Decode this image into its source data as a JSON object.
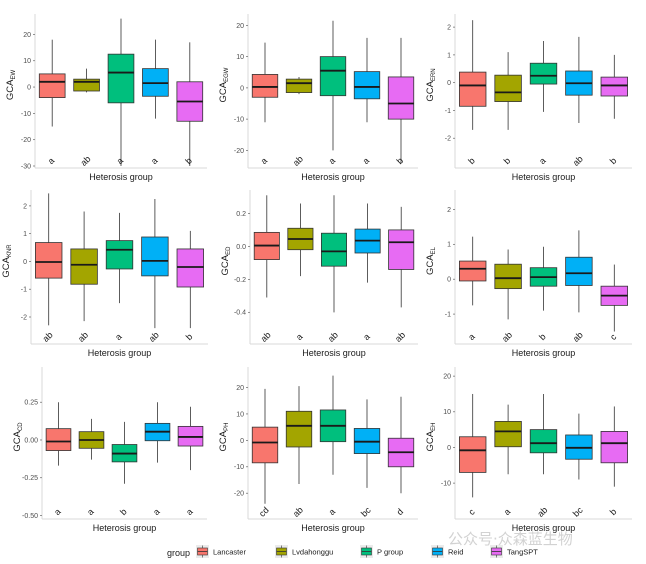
{
  "chart_data": {
    "type": "boxplot",
    "groups": [
      "Lancaster",
      "Lvdahonggu",
      "P group",
      "Reid",
      "TangSPT"
    ],
    "colors": [
      "#F8766D",
      "#A3A500",
      "#00BF7D",
      "#00B0F6",
      "#E76BF3"
    ],
    "legend": {
      "title": "group",
      "position": "bottom"
    },
    "panels": [
      {
        "id": "EW",
        "ylabel": "GCA",
        "ysub": "EW",
        "xlabel": "Heterosis group",
        "ylim": [
          -30,
          27
        ],
        "yticks": [
          -30,
          -20,
          -10,
          0,
          10,
          20
        ],
        "boxes": [
          {
            "min": -15,
            "q1": -4,
            "median": 2,
            "q3": 5,
            "max": 18
          },
          {
            "min": -2,
            "q1": -1.5,
            "median": 2,
            "q3": 3,
            "max": 7
          },
          {
            "min": -30,
            "q1": -6,
            "median": 5.5,
            "q3": 12.5,
            "max": 26
          },
          {
            "min": -12,
            "q1": -3.5,
            "median": 1.5,
            "q3": 7,
            "max": 18
          },
          {
            "min": -30,
            "q1": -13,
            "median": -5.5,
            "q3": 2,
            "max": 17
          }
        ],
        "letters": [
          "a",
          "ab",
          "a",
          "a",
          "b"
        ]
      },
      {
        "id": "EGW",
        "ylabel": "GCA",
        "ysub": "EGW",
        "xlabel": "Heterosis group",
        "ylim": [
          -25,
          23
        ],
        "yticks": [
          -20,
          -10,
          0,
          10,
          20
        ],
        "boxes": [
          {
            "min": -11,
            "q1": -3,
            "median": 0.3,
            "q3": 4.3,
            "max": 14.5
          },
          {
            "min": -2,
            "q1": -1.5,
            "median": 1.5,
            "q3": 2.8,
            "max": 3.5
          },
          {
            "min": -20,
            "q1": -2.5,
            "median": 5.5,
            "q3": 10,
            "max": 21.5
          },
          {
            "min": -11,
            "q1": -3.5,
            "median": 0.3,
            "q3": 5.2,
            "max": 16
          },
          {
            "min": -24,
            "q1": -10,
            "median": -5,
            "q3": 3.5,
            "max": 16
          }
        ],
        "letters": [
          "a",
          "ab",
          "a",
          "a",
          "b"
        ]
      },
      {
        "id": "ERN",
        "ylabel": "GCA",
        "ysub": "ERN",
        "xlabel": "Heterosis group",
        "ylim": [
          -3,
          2.4
        ],
        "yticks": [
          -2,
          -1,
          0,
          1,
          2
        ],
        "boxes": [
          {
            "min": -1.7,
            "q1": -0.85,
            "median": -0.1,
            "q3": 0.38,
            "max": 2.25
          },
          {
            "min": -1.7,
            "q1": -0.68,
            "median": -0.35,
            "q3": 0.27,
            "max": 1.1
          },
          {
            "min": -1.05,
            "q1": -0.05,
            "median": 0.25,
            "q3": 0.7,
            "max": 1.5
          },
          {
            "min": -1.45,
            "q1": -0.45,
            "median": -0.02,
            "q3": 0.42,
            "max": 1.65
          },
          {
            "min": -1.3,
            "q1": -0.48,
            "median": -0.1,
            "q3": 0.2,
            "max": 1.0
          }
        ],
        "letters": [
          "b",
          "b",
          "a",
          "ab",
          "b"
        ]
      },
      {
        "id": "KNR",
        "ylabel": "GCA",
        "ysub": "KNR",
        "xlabel": "Heterosis group",
        "ylim": [
          -2.9,
          2.5
        ],
        "yticks": [
          -2,
          -1,
          0,
          1,
          2
        ],
        "boxes": [
          {
            "min": -2.3,
            "q1": -0.6,
            "median": -0.02,
            "q3": 0.68,
            "max": 2.45
          },
          {
            "min": -2.15,
            "q1": -0.82,
            "median": -0.12,
            "q3": 0.45,
            "max": 1.8
          },
          {
            "min": -1.5,
            "q1": -0.27,
            "median": 0.42,
            "q3": 0.75,
            "max": 1.75
          },
          {
            "min": -2.4,
            "q1": -0.52,
            "median": 0.02,
            "q3": 0.88,
            "max": 2.25
          },
          {
            "min": -2.4,
            "q1": -0.92,
            "median": -0.2,
            "q3": 0.45,
            "max": 1.1
          }
        ],
        "letters": [
          "ab",
          "ab",
          "a",
          "ab",
          "b"
        ]
      },
      {
        "id": "ED",
        "ylabel": "GCA",
        "ysub": "ED",
        "xlabel": "Heterosis group",
        "ylim": [
          -0.58,
          0.33
        ],
        "yticks": [
          -0.4,
          -0.2,
          0.0,
          0.2
        ],
        "boxes": [
          {
            "min": -0.31,
            "q1": -0.08,
            "median": 0.005,
            "q3": 0.085,
            "max": 0.31
          },
          {
            "min": -0.18,
            "q1": -0.02,
            "median": 0.045,
            "q3": 0.11,
            "max": 0.26
          },
          {
            "min": -0.4,
            "q1": -0.12,
            "median": -0.03,
            "q3": 0.08,
            "max": 0.31
          },
          {
            "min": -0.22,
            "q1": -0.04,
            "median": 0.035,
            "q3": 0.105,
            "max": 0.26
          },
          {
            "min": -0.37,
            "q1": -0.14,
            "median": 0.025,
            "q3": 0.1,
            "max": 0.24
          }
        ],
        "letters": [
          "ab",
          "a",
          "ab",
          "a",
          "ab"
        ]
      },
      {
        "id": "EL",
        "ylabel": "GCA",
        "ysub": "EL",
        "xlabel": "Heterosis group",
        "ylim": [
          -1.8,
          2.5
        ],
        "yticks": [
          -1,
          0,
          1,
          2
        ],
        "boxes": [
          {
            "min": -0.75,
            "q1": -0.05,
            "median": 0.3,
            "q3": 0.52,
            "max": 1.22
          },
          {
            "min": -1.15,
            "q1": -0.27,
            "median": 0.03,
            "q3": 0.43,
            "max": 0.85
          },
          {
            "min": -0.9,
            "q1": -0.2,
            "median": 0.06,
            "q3": 0.33,
            "max": 0.93
          },
          {
            "min": -0.95,
            "q1": -0.18,
            "median": 0.17,
            "q3": 0.63,
            "max": 1.4
          },
          {
            "min": -1.5,
            "q1": -0.75,
            "median": -0.47,
            "q3": -0.2,
            "max": 0.42
          }
        ],
        "letters": [
          "a",
          "ab",
          "b",
          "ab",
          "c"
        ]
      },
      {
        "id": "CD",
        "ylabel": "GCA",
        "ysub": "CD",
        "xlabel": "Heterosis group",
        "ylim": [
          -0.51,
          0.47
        ],
        "yticks": [
          -0.5,
          -0.25,
          0.0,
          0.25
        ],
        "boxes": [
          {
            "min": -0.17,
            "q1": -0.07,
            "median": -0.01,
            "q3": 0.075,
            "max": 0.25
          },
          {
            "min": -0.13,
            "q1": -0.055,
            "median": 0.0,
            "q3": 0.055,
            "max": 0.14
          },
          {
            "min": -0.29,
            "q1": -0.145,
            "median": -0.09,
            "q3": -0.03,
            "max": 0.12
          },
          {
            "min": -0.15,
            "q1": -0.005,
            "median": 0.055,
            "q3": 0.11,
            "max": 0.25
          },
          {
            "min": -0.2,
            "q1": -0.04,
            "median": 0.02,
            "q3": 0.09,
            "max": 0.22
          }
        ],
        "letters": [
          "a",
          "a",
          "b",
          "a",
          "a"
        ]
      },
      {
        "id": "PH",
        "ylabel": "GCA",
        "ysub": "PH",
        "xlabel": "Heterosis group",
        "ylim": [
          -29,
          27
        ],
        "yticks": [
          -20,
          -10,
          0,
          10,
          20
        ],
        "boxes": [
          {
            "min": -24,
            "q1": -8.5,
            "median": -0.8,
            "q3": 5,
            "max": 19.5
          },
          {
            "min": -16.5,
            "q1": -2.5,
            "median": 5.5,
            "q3": 11,
            "max": 20.5
          },
          {
            "min": -13,
            "q1": -0.5,
            "median": 5.5,
            "q3": 11.5,
            "max": 24.5
          },
          {
            "min": -18,
            "q1": -5,
            "median": -0.5,
            "q3": 4.5,
            "max": 15.5
          },
          {
            "min": -20,
            "q1": -10,
            "median": -4.5,
            "q3": 0.8,
            "max": 16.5
          }
        ],
        "letters": [
          "cd",
          "ab",
          "a",
          "bc",
          "d"
        ]
      },
      {
        "id": "EH",
        "ylabel": "GCA",
        "ysub": "EH",
        "xlabel": "Heterosis group",
        "ylim": [
          -19.5,
          22
        ],
        "yticks": [
          -10,
          0,
          10,
          20
        ],
        "boxes": [
          {
            "min": -14,
            "q1": -7,
            "median": -0.8,
            "q3": 3,
            "max": 15
          },
          {
            "min": -7.5,
            "q1": 0.2,
            "median": 4.5,
            "q3": 7.3,
            "max": 12
          },
          {
            "min": -7.5,
            "q1": -1.5,
            "median": 1.2,
            "q3": 5,
            "max": 15
          },
          {
            "min": -9,
            "q1": -3.3,
            "median": -0.1,
            "q3": 3.5,
            "max": 9.5
          },
          {
            "min": -11,
            "q1": -4.3,
            "median": 1.2,
            "q3": 4.5,
            "max": 11.5
          }
        ],
        "letters": [
          "c",
          "a",
          "ab",
          "bc",
          "b"
        ]
      }
    ]
  },
  "legend": {
    "title": "group",
    "items": [
      "Lancaster",
      "Lvdahonggu",
      "P group",
      "Reid",
      "TangSPT"
    ]
  },
  "watermark": "公众号·众森蓝生物"
}
